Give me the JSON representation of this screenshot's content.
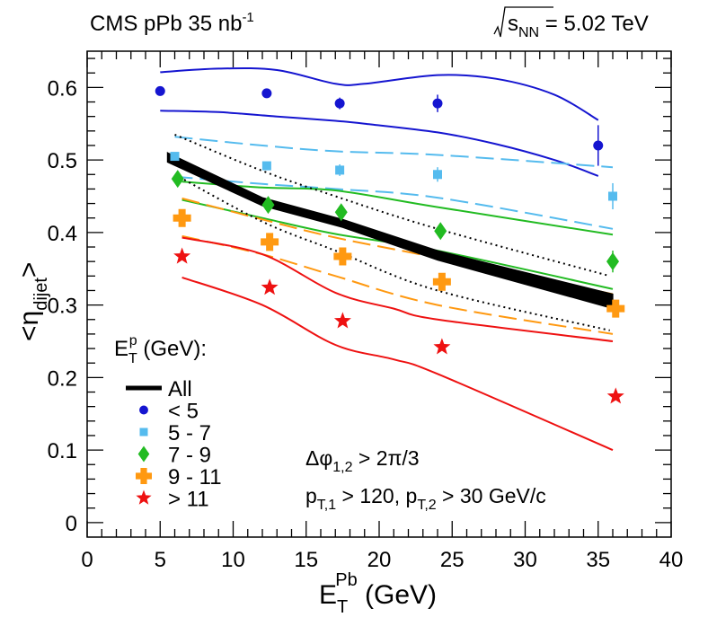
{
  "chart_data": {
    "type": "scatter",
    "title_left": "CMS pPb 35 nb",
    "title_left_sup": "-1",
    "title_right_sqrt": "s",
    "title_right_sub": "NN",
    "title_right_value": " = 5.02 TeV",
    "xlabel_main": "E",
    "xlabel_sub": "T",
    "xlabel_sup": "Pb",
    "xlabel_unit": " (GeV)",
    "ylabel_open": "<",
    "ylabel_eta": "η",
    "ylabel_sub": "dijet",
    "ylabel_close": ">",
    "xlim": [
      0,
      40
    ],
    "ylim": [
      -0.02,
      0.65
    ],
    "x_ticks": [
      0,
      5,
      10,
      15,
      20,
      25,
      30,
      35,
      40
    ],
    "x_tick_labels": [
      "0",
      "5",
      "10",
      "15",
      "20",
      "25",
      "30",
      "35",
      "40"
    ],
    "y_ticks": [
      0,
      0.1,
      0.2,
      0.3,
      0.4,
      0.5,
      0.6
    ],
    "y_tick_labels": [
      "0",
      "0.1",
      "0.2",
      "0.3",
      "0.4",
      "0.5",
      "0.6"
    ],
    "legend_title_main": "E",
    "legend_title_sub": "T",
    "legend_title_sup": "p",
    "legend_title_rest": " (GeV):",
    "annotation_1_prefix": "Δφ",
    "annotation_1_sub": "1,2",
    "annotation_1_rest": " > 2π/3",
    "annotation_2_p1": "p",
    "annotation_2_sub1": "T,1",
    "annotation_2_mid": " > 120, p",
    "annotation_2_sub2": "T,2",
    "annotation_2_rest": " > 30 GeV/c",
    "band_all": {
      "name": "All",
      "color": "#000000",
      "x": [
        5.5,
        12,
        17.5,
        24,
        36
      ],
      "lower": [
        0.497,
        0.437,
        0.407,
        0.362,
        0.295
      ],
      "upper": [
        0.51,
        0.448,
        0.418,
        0.375,
        0.315
      ],
      "dotted_upper_x": [
        6,
        12,
        17,
        24,
        35.8
      ],
      "dotted_upper": [
        0.535,
        0.485,
        0.45,
        0.405,
        0.34
      ],
      "dotted_lower_x": [
        6,
        12,
        17,
        24,
        35.8
      ],
      "dotted_lower": [
        0.48,
        0.415,
        0.375,
        0.32,
        0.265
      ]
    },
    "series": [
      {
        "name": "< 5",
        "color": "#1515d0",
        "marker": "circle",
        "x": [
          5,
          12.3,
          17.3,
          24,
          35
        ],
        "y": [
          0.595,
          0.592,
          0.578,
          0.578,
          0.52
        ],
        "yerr": [
          0.005,
          0.005,
          0.008,
          0.012,
          0.028
        ],
        "band_x": [
          5,
          9,
          13,
          17,
          19,
          24,
          28,
          32,
          35
        ],
        "band_upper": [
          0.621,
          0.626,
          0.624,
          0.605,
          0.605,
          0.617,
          0.612,
          0.59,
          0.555
        ],
        "band_lower": [
          0.568,
          0.566,
          0.56,
          0.554,
          0.55,
          0.538,
          0.522,
          0.5,
          0.478
        ],
        "band_style": "solid"
      },
      {
        "name": "5 - 7",
        "color": "#55bbee",
        "marker": "square",
        "x": [
          6,
          12.3,
          17.3,
          24,
          36
        ],
        "y": [
          0.505,
          0.492,
          0.486,
          0.48,
          0.45
        ],
        "yerr": [
          0.004,
          0.005,
          0.008,
          0.01,
          0.018
        ],
        "band_x": [
          6,
          12,
          17,
          24,
          36
        ],
        "band_upper": [
          0.532,
          0.52,
          0.512,
          0.507,
          0.49
        ],
        "band_lower": [
          0.477,
          0.467,
          0.46,
          0.448,
          0.405
        ],
        "band_style": "dashed"
      },
      {
        "name": "7 - 9",
        "color": "#22bb22",
        "marker": "diamond",
        "x": [
          6.2,
          12.4,
          17.4,
          24.2,
          36
        ],
        "y": [
          0.474,
          0.438,
          0.428,
          0.402,
          0.36
        ],
        "yerr": [
          0.005,
          0.005,
          0.008,
          0.01,
          0.015
        ],
        "band_x": [
          6.5,
          12,
          17,
          24,
          36
        ],
        "band_upper": [
          0.47,
          0.462,
          0.458,
          0.435,
          0.397
        ],
        "band_lower": [
          0.445,
          0.42,
          0.398,
          0.375,
          0.322
        ],
        "band_style": "solid"
      },
      {
        "name": "9 - 11",
        "color": "#ff9911",
        "marker": "cross",
        "x": [
          6.5,
          12.5,
          17.5,
          24.3,
          36.2
        ],
        "y": [
          0.42,
          0.387,
          0.367,
          0.332,
          0.295
        ],
        "yerr": [
          0.005,
          0.005,
          0.008,
          0.01,
          0.012
        ],
        "band_x": [
          6.5,
          12,
          17,
          24,
          36
        ],
        "band_upper": [
          0.447,
          0.418,
          0.393,
          0.365,
          0.315
        ],
        "band_lower": [
          0.395,
          0.37,
          0.34,
          0.3,
          0.26
        ],
        "band_style": "dashed"
      },
      {
        "name": "> 11",
        "color": "#ee1111",
        "marker": "star",
        "x": [
          6.5,
          12.5,
          17.5,
          24.3,
          36.2
        ],
        "y": [
          0.367,
          0.324,
          0.278,
          0.242,
          0.174
        ],
        "yerr": [
          0,
          0,
          0,
          0,
          0
        ],
        "band_x": [
          6.5,
          12,
          17,
          21,
          24,
          36
        ],
        "band_upper": [
          0.393,
          0.37,
          0.317,
          0.295,
          0.28,
          0.25
        ],
        "band_lower": [
          0.338,
          0.3,
          0.245,
          0.225,
          0.205,
          0.1
        ],
        "band_style": "solid"
      }
    ]
  }
}
